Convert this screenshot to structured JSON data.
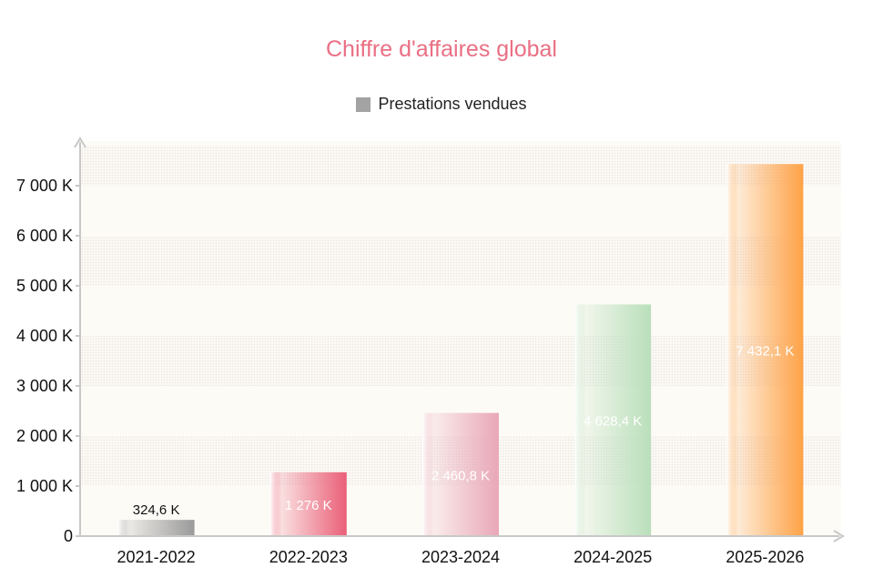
{
  "chart_data": {
    "type": "bar",
    "title": "Chiffre d'affaires global",
    "xlabel": "",
    "ylabel": "",
    "legend": {
      "placement": "top",
      "entries": [
        "Prestations vendues"
      ]
    },
    "grid": true,
    "ylim": [
      0,
      7800
    ],
    "yticks": [
      0,
      1000,
      2000,
      3000,
      4000,
      5000,
      6000,
      7000
    ],
    "ytick_labels": [
      "0",
      "1 000 K",
      "2 000 K",
      "3 000 K",
      "4 000 K",
      "5 000 K",
      "6 000 K",
      "7 000 K"
    ],
    "categories": [
      "2021-2022",
      "2022-2023",
      "2023-2024",
      "2024-2025",
      "2025-2026"
    ],
    "series": [
      {
        "name": "Prestations vendues",
        "values": [
          324.6,
          1276,
          2460.8,
          4628.4,
          7432.1
        ],
        "labels": [
          "324,6 K",
          "1 276 K",
          "2 460,8 K",
          "4 628,4 K",
          "7 432,1 K"
        ]
      }
    ],
    "bar_colors": [
      "#9a9a9a",
      "#ea5f78",
      "#e9a7b8",
      "#b9dfba",
      "#ffa246"
    ],
    "legend_color": "#a3a3a3",
    "title_color": "#ea6f84"
  }
}
